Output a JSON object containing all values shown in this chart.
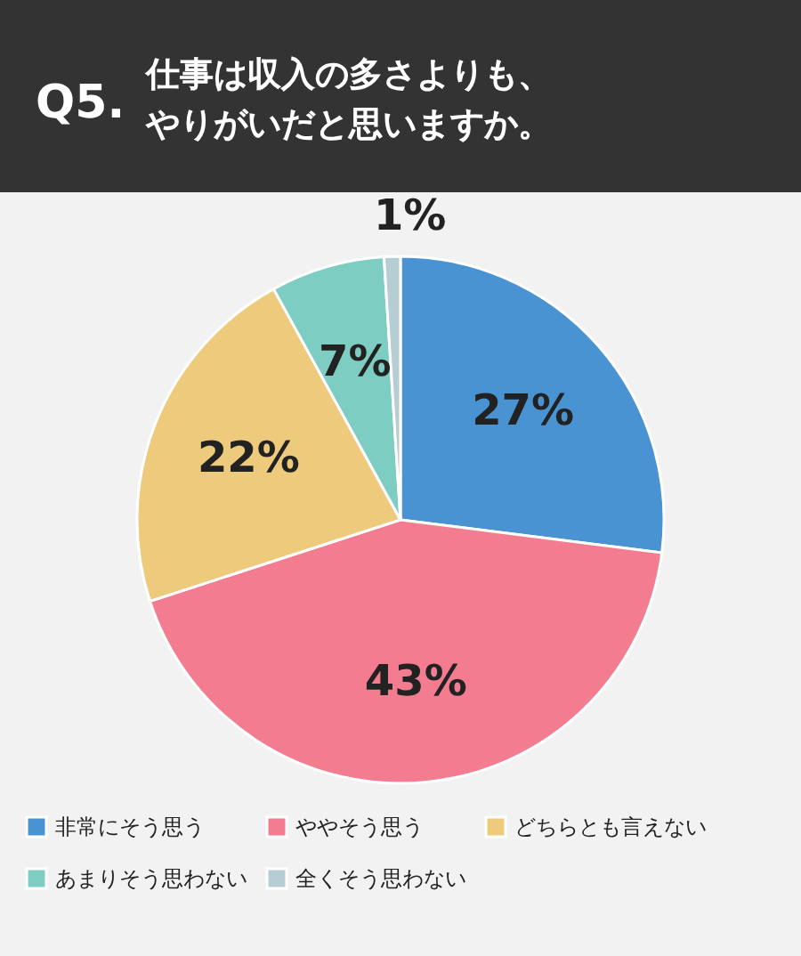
{
  "chart_data": {
    "type": "pie",
    "title": "Q5.",
    "subtitle": "仕事は収入の多さよりも、やりがいだと思いますか。",
    "categories": [
      "非常にそう思う",
      "ややそう思う",
      "どちらとも言えない",
      "あまりそう思わない",
      "全くそう思わない"
    ],
    "values": [
      27,
      43,
      22,
      7,
      1
    ],
    "colors": [
      "#4a93d2",
      "#f47c90",
      "#eecb7c",
      "#7ecdc2",
      "#b5cdd3"
    ],
    "value_labels": [
      "27%",
      "43%",
      "22%",
      "7%",
      "1%"
    ],
    "legend": "bottom"
  }
}
